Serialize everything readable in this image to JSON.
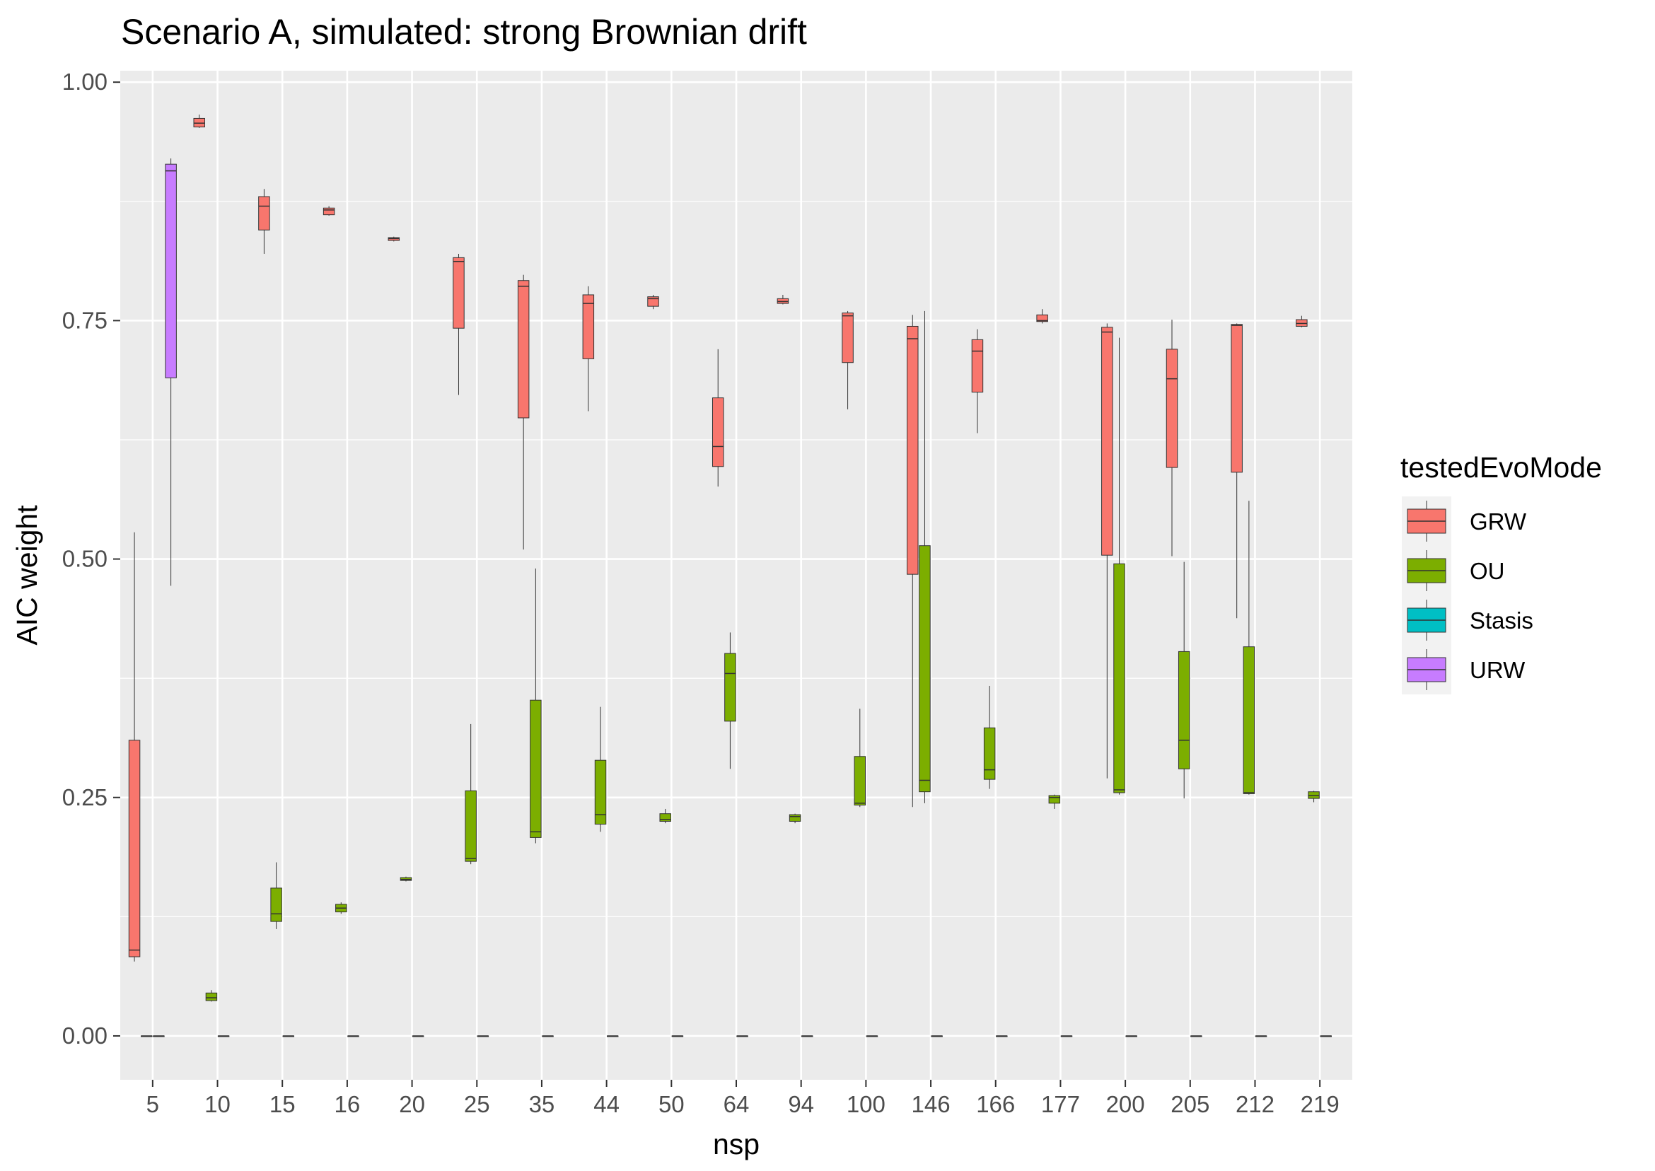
{
  "chart_data": {
    "type": "boxplot",
    "title": "Scenario A, simulated: strong Brownian drift",
    "xlabel": "nsp",
    "ylabel": "AIC weight",
    "ylim": [
      -0.046,
      1.012
    ],
    "yticks": [
      0.0,
      0.25,
      0.5,
      0.75,
      1.0
    ],
    "ytick_labels": [
      "0.00",
      "0.25",
      "0.50",
      "0.75",
      "1.00"
    ],
    "grid": true,
    "legend": {
      "title": "testedEvoMode",
      "placement": "right",
      "entries": [
        {
          "name": "GRW",
          "color": "#F8766D"
        },
        {
          "name": "OU",
          "color": "#7CAE00"
        },
        {
          "name": "Stasis",
          "color": "#00BFC4"
        },
        {
          "name": "URW",
          "color": "#C77CFF"
        }
      ]
    },
    "categories": [
      "5",
      "10",
      "15",
      "16",
      "20",
      "25",
      "35",
      "44",
      "50",
      "64",
      "94",
      "100",
      "146",
      "166",
      "177",
      "200",
      "205",
      "212",
      "219"
    ],
    "series": [
      {
        "name": "GRW",
        "color": "#F8766D",
        "boxes": [
          {
            "min": 0.078,
            "q1": 0.083,
            "median": 0.09,
            "q3": 0.31,
            "max": 0.528
          },
          {
            "min": 0.952,
            "q1": 0.953,
            "median": 0.957,
            "q3": 0.962,
            "max": 0.966
          },
          {
            "min": 0.82,
            "q1": 0.845,
            "median": 0.87,
            "q3": 0.88,
            "max": 0.888
          },
          {
            "min": 0.86,
            "q1": 0.861,
            "median": 0.866,
            "q3": 0.868,
            "max": 0.87
          },
          {
            "min": 0.833,
            "q1": 0.834,
            "median": 0.836,
            "q3": 0.837,
            "max": 0.838
          },
          {
            "min": 0.672,
            "q1": 0.742,
            "median": 0.812,
            "q3": 0.816,
            "max": 0.82
          },
          {
            "min": 0.51,
            "q1": 0.648,
            "median": 0.786,
            "q3": 0.792,
            "max": 0.798
          },
          {
            "min": 0.655,
            "q1": 0.71,
            "median": 0.768,
            "q3": 0.777,
            "max": 0.786
          },
          {
            "min": 0.762,
            "q1": 0.765,
            "median": 0.773,
            "q3": 0.775,
            "max": 0.777
          },
          {
            "min": 0.576,
            "q1": 0.597,
            "median": 0.618,
            "q3": 0.669,
            "max": 0.72
          },
          {
            "min": 0.767,
            "q1": 0.768,
            "median": 0.77,
            "q3": 0.773,
            "max": 0.777
          },
          {
            "min": 0.657,
            "q1": 0.706,
            "median": 0.755,
            "q3": 0.758,
            "max": 0.76
          },
          {
            "min": 0.24,
            "q1": 0.484,
            "median": 0.731,
            "q3": 0.744,
            "max": 0.756
          },
          {
            "min": 0.632,
            "q1": 0.675,
            "median": 0.718,
            "q3": 0.73,
            "max": 0.741
          },
          {
            "min": 0.747,
            "q1": 0.749,
            "median": 0.75,
            "q3": 0.756,
            "max": 0.762
          },
          {
            "min": 0.27,
            "q1": 0.504,
            "median": 0.738,
            "q3": 0.743,
            "max": 0.747
          },
          {
            "min": 0.503,
            "q1": 0.596,
            "median": 0.689,
            "q3": 0.72,
            "max": 0.751
          },
          {
            "min": 0.438,
            "q1": 0.591,
            "median": 0.745,
            "q3": 0.746,
            "max": 0.747
          },
          {
            "min": 0.743,
            "q1": 0.744,
            "median": 0.747,
            "q3": 0.751,
            "max": 0.755
          }
        ]
      },
      {
        "name": "OU",
        "color": "#7CAE00",
        "boxes": [
          {
            "min": 0.0,
            "q1": 0.0,
            "median": 0.0,
            "q3": 0.0,
            "max": 0.0
          },
          {
            "min": 0.036,
            "q1": 0.037,
            "median": 0.04,
            "q3": 0.045,
            "max": 0.048
          },
          {
            "min": 0.112,
            "q1": 0.12,
            "median": 0.128,
            "q3": 0.155,
            "max": 0.182
          },
          {
            "min": 0.128,
            "q1": 0.13,
            "median": 0.134,
            "q3": 0.138,
            "max": 0.14
          },
          {
            "min": 0.162,
            "q1": 0.163,
            "median": 0.164,
            "q3": 0.166,
            "max": 0.167
          },
          {
            "min": 0.18,
            "q1": 0.183,
            "median": 0.186,
            "q3": 0.257,
            "max": 0.327
          },
          {
            "min": 0.202,
            "q1": 0.208,
            "median": 0.214,
            "q3": 0.352,
            "max": 0.49
          },
          {
            "min": 0.214,
            "q1": 0.222,
            "median": 0.232,
            "q3": 0.289,
            "max": 0.345
          },
          {
            "min": 0.223,
            "q1": 0.225,
            "median": 0.227,
            "q3": 0.233,
            "max": 0.238
          },
          {
            "min": 0.28,
            "q1": 0.33,
            "median": 0.38,
            "q3": 0.401,
            "max": 0.423
          },
          {
            "min": 0.223,
            "q1": 0.225,
            "median": 0.23,
            "q3": 0.232,
            "max": 0.233
          },
          {
            "min": 0.24,
            "q1": 0.242,
            "median": 0.244,
            "q3": 0.293,
            "max": 0.343
          },
          {
            "min": 0.244,
            "q1": 0.256,
            "median": 0.268,
            "q3": 0.514,
            "max": 0.76
          },
          {
            "min": 0.259,
            "q1": 0.269,
            "median": 0.279,
            "q3": 0.323,
            "max": 0.367
          },
          {
            "min": 0.238,
            "q1": 0.244,
            "median": 0.25,
            "q3": 0.252,
            "max": 0.253
          },
          {
            "min": 0.253,
            "q1": 0.255,
            "median": 0.258,
            "q3": 0.495,
            "max": 0.732
          },
          {
            "min": 0.249,
            "q1": 0.28,
            "median": 0.31,
            "q3": 0.403,
            "max": 0.497
          },
          {
            "min": 0.253,
            "q1": 0.254,
            "median": 0.255,
            "q3": 0.408,
            "max": 0.561
          },
          {
            "min": 0.245,
            "q1": 0.249,
            "median": 0.252,
            "q3": 0.256,
            "max": 0.257
          }
        ]
      },
      {
        "name": "Stasis",
        "color": "#00BFC4",
        "boxes": [
          {
            "min": 0.0,
            "q1": 0.0,
            "median": 0.0,
            "q3": 0.0,
            "max": 0.0
          },
          {
            "min": 0.0,
            "q1": 0.0,
            "median": 0.0,
            "q3": 0.0,
            "max": 0.0
          },
          {
            "min": 0.0,
            "q1": 0.0,
            "median": 0.0,
            "q3": 0.0,
            "max": 0.0
          },
          {
            "min": 0.0,
            "q1": 0.0,
            "median": 0.0,
            "q3": 0.0,
            "max": 0.0
          },
          {
            "min": 0.0,
            "q1": 0.0,
            "median": 0.0,
            "q3": 0.0,
            "max": 0.0
          },
          {
            "min": 0.0,
            "q1": 0.0,
            "median": 0.0,
            "q3": 0.0,
            "max": 0.0
          },
          {
            "min": 0.0,
            "q1": 0.0,
            "median": 0.0,
            "q3": 0.0,
            "max": 0.0
          },
          {
            "min": 0.0,
            "q1": 0.0,
            "median": 0.0,
            "q3": 0.0,
            "max": 0.0
          },
          {
            "min": 0.0,
            "q1": 0.0,
            "median": 0.0,
            "q3": 0.0,
            "max": 0.0
          },
          {
            "min": 0.0,
            "q1": 0.0,
            "median": 0.0,
            "q3": 0.0,
            "max": 0.0
          },
          {
            "min": 0.0,
            "q1": 0.0,
            "median": 0.0,
            "q3": 0.0,
            "max": 0.0
          },
          {
            "min": 0.0,
            "q1": 0.0,
            "median": 0.0,
            "q3": 0.0,
            "max": 0.0
          },
          {
            "min": 0.0,
            "q1": 0.0,
            "median": 0.0,
            "q3": 0.0,
            "max": 0.0
          },
          {
            "min": 0.0,
            "q1": 0.0,
            "median": 0.0,
            "q3": 0.0,
            "max": 0.0
          },
          {
            "min": 0.0,
            "q1": 0.0,
            "median": 0.0,
            "q3": 0.0,
            "max": 0.0
          },
          {
            "min": 0.0,
            "q1": 0.0,
            "median": 0.0,
            "q3": 0.0,
            "max": 0.0
          },
          {
            "min": 0.0,
            "q1": 0.0,
            "median": 0.0,
            "q3": 0.0,
            "max": 0.0
          },
          {
            "min": 0.0,
            "q1": 0.0,
            "median": 0.0,
            "q3": 0.0,
            "max": 0.0
          },
          {
            "min": 0.0,
            "q1": 0.0,
            "median": 0.0,
            "q3": 0.0,
            "max": 0.0
          }
        ]
      },
      {
        "name": "URW",
        "color": "#C77CFF",
        "boxes": [
          {
            "min": 0.472,
            "q1": 0.69,
            "median": 0.907,
            "q3": 0.914,
            "max": 0.92
          },
          null,
          null,
          null,
          null,
          null,
          null,
          null,
          null,
          null,
          null,
          null,
          null,
          null,
          null,
          null,
          null,
          null,
          null
        ]
      }
    ]
  }
}
